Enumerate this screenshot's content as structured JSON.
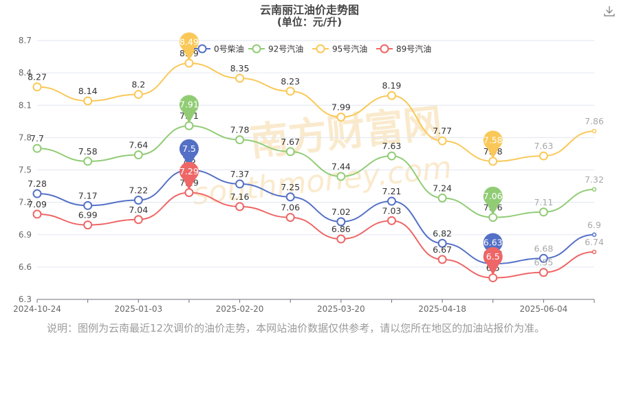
{
  "chart_data": {
    "type": "line",
    "title": "云南丽江油价走势图",
    "subtitle": "(单位：元/升)",
    "xlabel": "",
    "ylabel": "",
    "ylim": [
      6.3,
      8.7
    ],
    "yticks": [
      6.3,
      6.6,
      6.9,
      7.2,
      7.5,
      7.8,
      8.1,
      8.4,
      8.7
    ],
    "x_tick_labels": [
      "2024-10-24",
      "2025-01-03",
      "2025-02-20",
      "2025-03-20",
      "2025-04-18",
      "2025-06-04"
    ],
    "x_tick_index": [
      0,
      2,
      4,
      6,
      8,
      10
    ],
    "grid": true,
    "legend_position": "top",
    "smooth": true,
    "series": [
      {
        "name": "0号柴油",
        "color": "#5470c6",
        "values": [
          7.28,
          7.17,
          7.22,
          7.5,
          7.37,
          7.25,
          7.02,
          7.21,
          6.82,
          6.63,
          6.68,
          6.9
        ]
      },
      {
        "name": "92号汽油",
        "color": "#91cc75",
        "values": [
          7.7,
          7.58,
          7.64,
          7.91,
          7.78,
          7.67,
          7.44,
          7.63,
          7.24,
          7.06,
          7.11,
          7.32
        ]
      },
      {
        "name": "95号汽油",
        "color": "#fac858",
        "values": [
          8.27,
          8.14,
          8.2,
          8.49,
          8.35,
          8.23,
          7.99,
          8.19,
          7.77,
          7.58,
          7.63,
          7.86
        ]
      },
      {
        "name": "89号汽油",
        "color": "#ee6666",
        "values": [
          7.09,
          6.99,
          7.04,
          7.29,
          7.16,
          7.06,
          6.86,
          7.03,
          6.67,
          6.5,
          6.55,
          6.74
        ]
      }
    ],
    "max_markers": [
      {
        "series": 0,
        "value": 7.5
      },
      {
        "series": 1,
        "value": 7.91
      },
      {
        "series": 2,
        "value": 8.49
      },
      {
        "series": 3,
        "value": 7.29
      }
    ],
    "min_markers": [
      {
        "series": 0,
        "value": 6.63
      },
      {
        "series": 1,
        "value": 7.06
      },
      {
        "series": 2,
        "value": 7.58
      },
      {
        "series": 3,
        "value": 6.5
      }
    ],
    "watermark": "南方财富网",
    "watermark_sub": "southmoney.com"
  },
  "note": "说明：图例为云南最近12次调价的油价走势，本网站油价数据仅供参考，请以您所在地区的加油站报价为准。",
  "icons": {
    "download": "download-icon"
  }
}
